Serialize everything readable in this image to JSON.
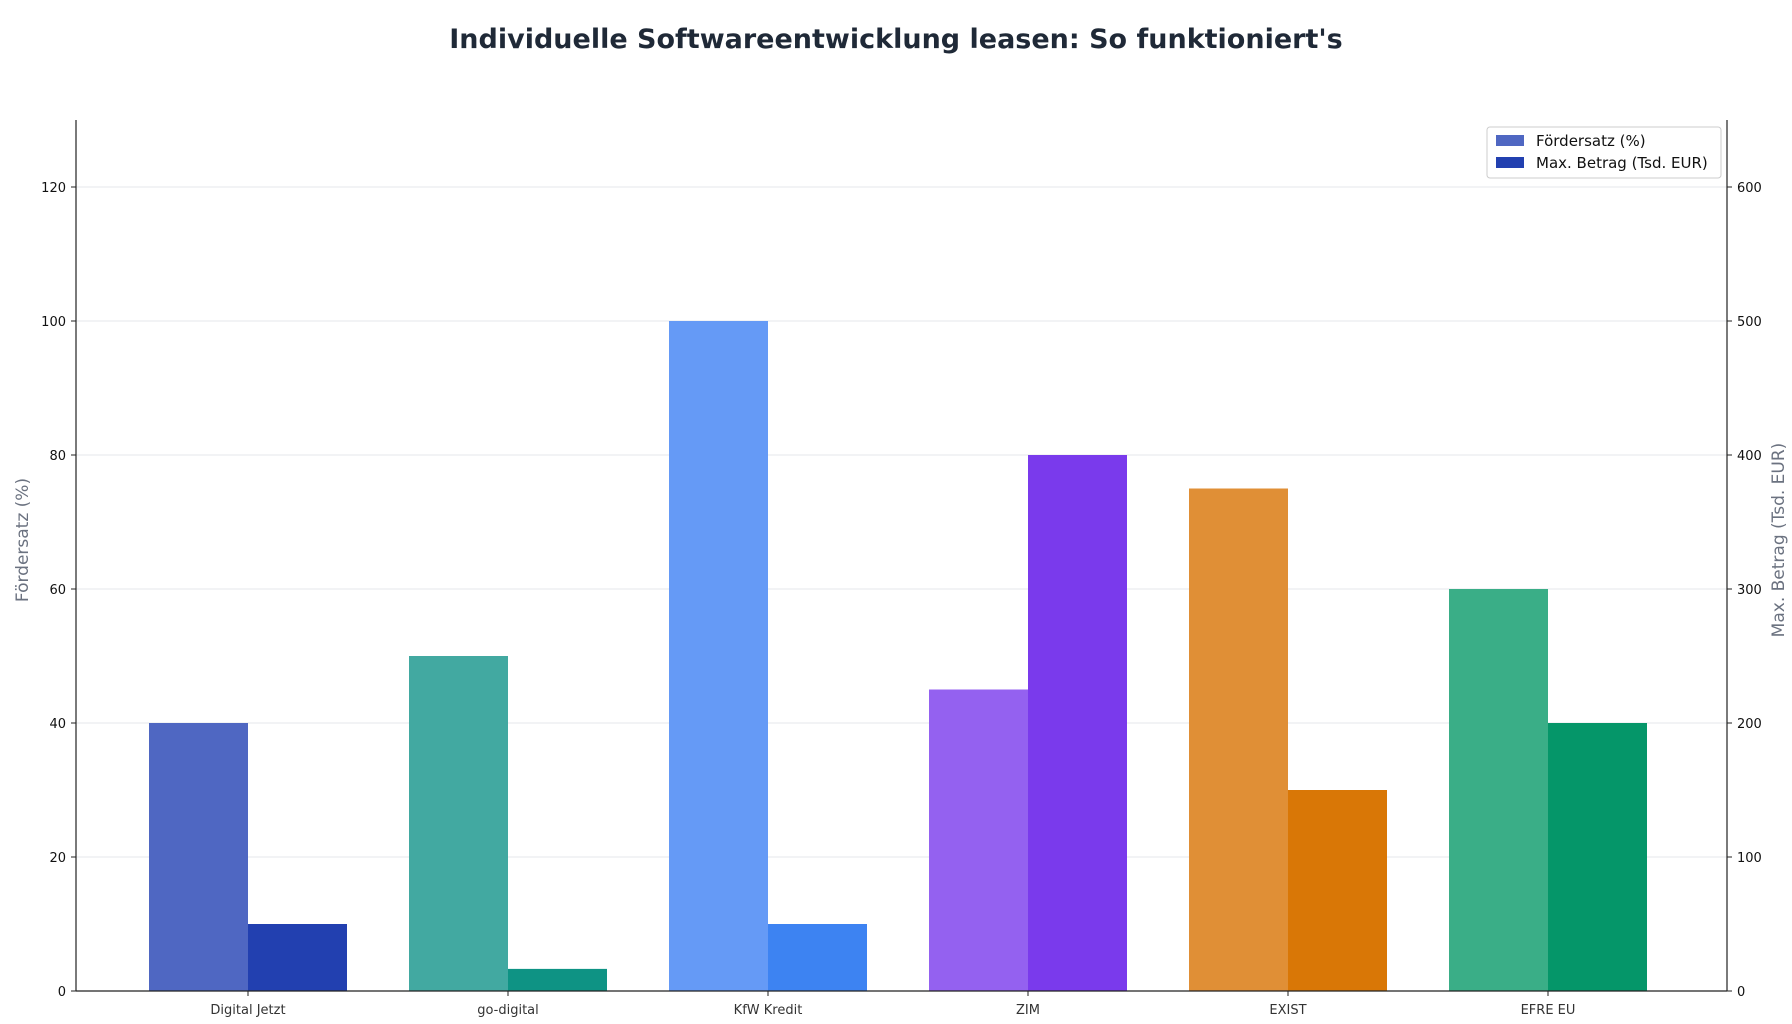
{
  "chart_data": {
    "type": "bar",
    "title": "Individuelle Softwareentwicklung leasen: So funktioniert's",
    "categories": [
      "Digital Jetzt",
      "go-digital",
      "KfW Kredit",
      "ZIM",
      "EXIST",
      "EFRE EU"
    ],
    "series": [
      {
        "name": "Fördersatz (%)",
        "axis": "left",
        "values": [
          40,
          50,
          100,
          45,
          75,
          60
        ]
      },
      {
        "name": "Max. Betrag (Tsd. EUR)",
        "axis": "right",
        "values": [
          50,
          16.5,
          50,
          400,
          150,
          200
        ]
      }
    ],
    "ylabel": "Fördersatz (%)",
    "ylabel_right": "Max. Betrag (Tsd. EUR)",
    "ylim": [
      0,
      130
    ],
    "ylim_right": [
      0,
      650
    ],
    "yticks": [
      0,
      20,
      40,
      60,
      80,
      100,
      120
    ],
    "yticks_right": [
      0,
      100,
      200,
      300,
      400,
      500,
      600
    ],
    "grid": true,
    "legend_position": "top-right",
    "colors": {
      "rate": [
        "#4f67c2",
        "#42a9a1",
        "#659af6",
        "#9461f0",
        "#e08f36",
        "#3aae87"
      ],
      "amount": [
        "#2240b0",
        "#0e9384",
        "#3d83f2",
        "#7a3aec",
        "#d97706",
        "#059669"
      ],
      "legend_rate": "#4f67c2",
      "legend_amount": "#2240b0"
    }
  }
}
